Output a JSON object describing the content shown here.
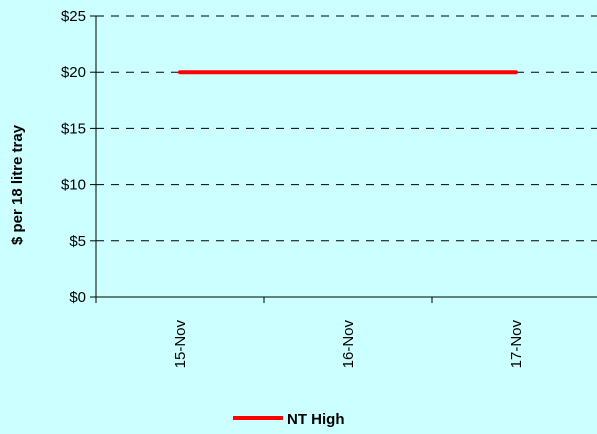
{
  "chart_data": {
    "type": "line",
    "title": "",
    "xlabel": "",
    "ylabel": "$ per 18 litre tray",
    "categories": [
      "15-Nov",
      "16-Nov",
      "17-Nov"
    ],
    "series": [
      {
        "name": "NT High",
        "values": [
          20,
          20,
          20
        ],
        "color": "#ff0000"
      }
    ],
    "ylim": [
      0,
      25
    ],
    "yticks": [
      0,
      5,
      10,
      15,
      20,
      25
    ],
    "ytick_labels": [
      "$0",
      "$5",
      "$10",
      "$15",
      "$20",
      "$25"
    ],
    "grid": true,
    "grid_style": "dashed",
    "legend_position": "bottom",
    "background_color": "#ccffff",
    "axis_color": "#000000"
  }
}
